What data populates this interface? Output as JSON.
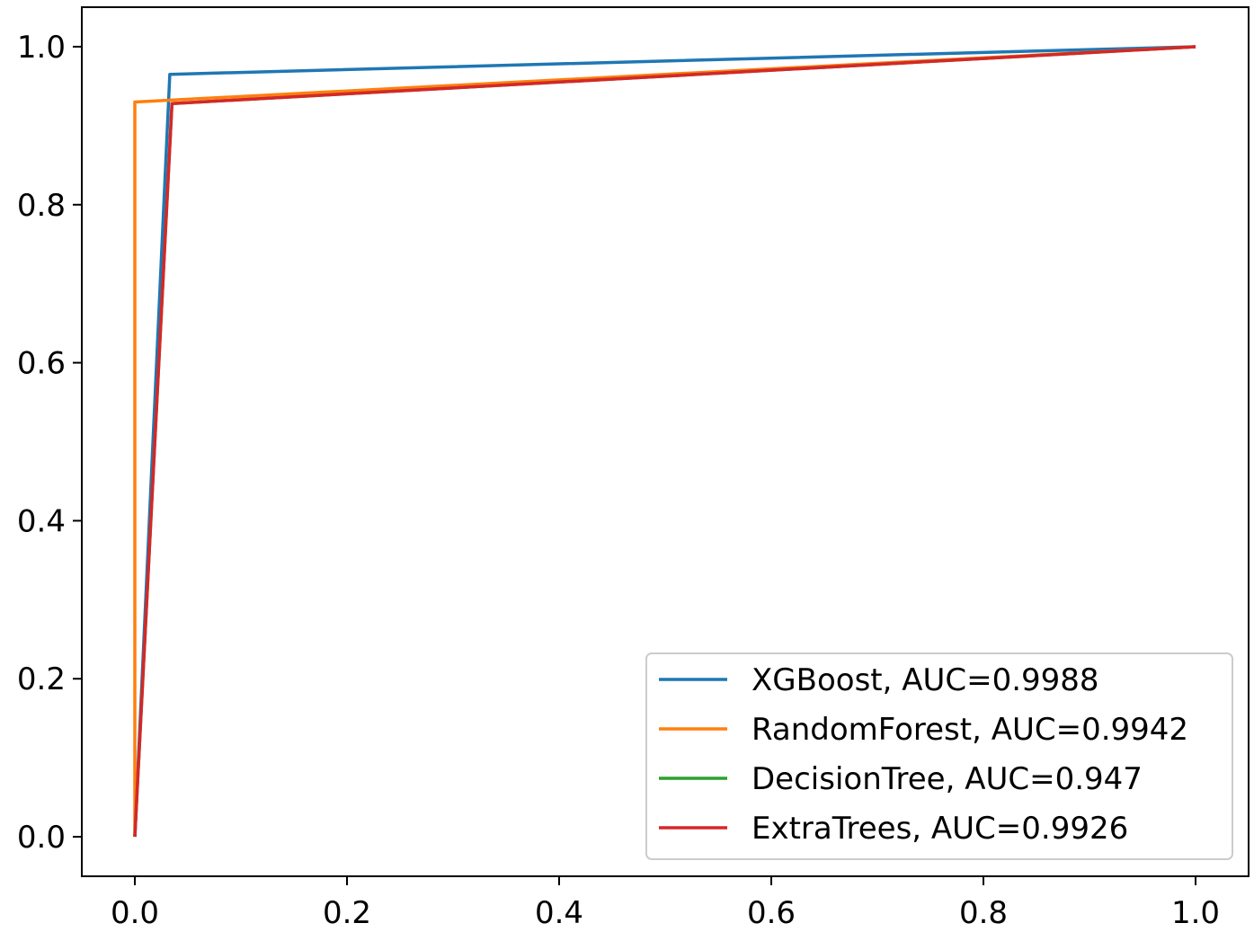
{
  "chart_data": {
    "type": "line",
    "title": "",
    "xlabel": "",
    "ylabel": "",
    "xlim": [
      -0.05,
      1.05
    ],
    "ylim": [
      -0.05,
      1.05
    ],
    "xticks": [
      0.0,
      0.2,
      0.4,
      0.6,
      0.8,
      1.0
    ],
    "xtick_labels": [
      "0.0",
      "0.2",
      "0.4",
      "0.6",
      "0.8",
      "1.0"
    ],
    "yticks": [
      0.0,
      0.2,
      0.4,
      0.6,
      0.8,
      1.0
    ],
    "ytick_labels": [
      "0.0",
      "0.2",
      "0.4",
      "0.6",
      "0.8",
      "1.0"
    ],
    "grid": false,
    "legend_position": "lower right",
    "series": [
      {
        "name": "XGBoost, AUC=0.9988",
        "color": "#1f77b4",
        "x": [
          0.0,
          0.033,
          1.0
        ],
        "y": [
          0.0,
          0.965,
          1.0
        ]
      },
      {
        "name": "RandomForest, AUC=0.9942",
        "color": "#ff7f0e",
        "x": [
          0.0,
          0.0,
          1.0
        ],
        "y": [
          0.0,
          0.93,
          1.0
        ]
      },
      {
        "name": "DecisionTree, AUC=0.947",
        "color": "#2ca02c",
        "x": [
          0.0,
          0.035,
          1.0
        ],
        "y": [
          0.0,
          0.928,
          1.0
        ]
      },
      {
        "name": "ExtraTrees, AUC=0.9926",
        "color": "#d62728",
        "x": [
          0.0,
          0.035,
          1.0
        ],
        "y": [
          0.0,
          0.928,
          1.0
        ]
      }
    ]
  }
}
